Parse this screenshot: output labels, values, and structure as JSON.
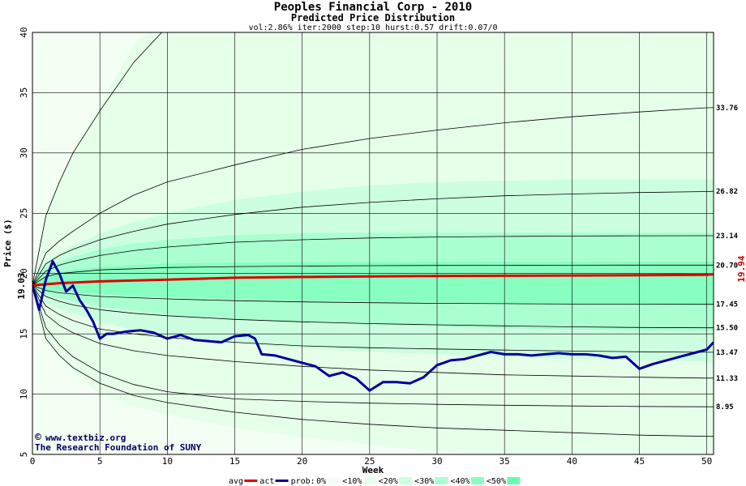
{
  "chart_data": {
    "type": "area",
    "title": "Peoples Financial Corp - 2010",
    "subtitle": "Predicted Price Distribution",
    "params": "vol:2.86% iter:2000 step:10 hurst:0.57 drift:0.07/0",
    "xlabel": "Week",
    "ylabel": "Price ($)",
    "xlim": [
      0,
      50.5
    ],
    "ylim": [
      5,
      40
    ],
    "x_ticks": [
      0,
      5,
      10,
      15,
      20,
      25,
      30,
      35,
      40,
      45,
      50
    ],
    "y_ticks": [
      5,
      10,
      15,
      20,
      25,
      30,
      35,
      40
    ],
    "start_price": 19.03,
    "start_price_label": "19.03",
    "end_price_label": "19.94",
    "right_labels": [
      "33.76",
      "26.82",
      "23.14",
      "20.70",
      "17.45",
      "15.50",
      "13.47",
      "11.33",
      "8.95"
    ],
    "bands": {
      "x": [
        0,
        0.5,
        1,
        2,
        3,
        5,
        7.5,
        10,
        15,
        20,
        25,
        30,
        35,
        40,
        45,
        50,
        50.5
      ],
      "upper": [
        [
          19.03,
          22.5,
          24.8,
          27.8,
          30.0,
          34.0,
          39.0,
          41.5,
          45,
          48,
          50,
          52,
          54,
          56,
          58,
          60,
          60
        ],
        [
          19.03,
          20.4,
          21.0,
          21.7,
          22.3,
          23.3,
          24.3,
          25.0,
          26.1,
          26.8,
          27.3,
          27.6,
          27.7,
          27.8,
          27.8,
          27.8,
          27.8
        ],
        [
          19.03,
          20.0,
          20.5,
          21.0,
          21.4,
          22.0,
          22.5,
          22.8,
          23.2,
          23.35,
          23.4,
          23.4,
          23.4,
          23.4,
          23.4,
          23.4,
          23.4
        ],
        [
          19.03,
          19.6,
          19.85,
          20.1,
          20.3,
          20.55,
          20.72,
          20.82,
          20.92,
          20.95,
          20.96,
          20.97,
          20.98,
          20.98,
          20.98,
          20.98,
          20.98
        ]
      ],
      "lower": [
        [
          19.03,
          15.8,
          14.4,
          13.0,
          11.9,
          10.0,
          9.0,
          8.3,
          7.2,
          6.4,
          5.8,
          5.3,
          4.9,
          4.6,
          4.3,
          4.1,
          4.1
        ],
        [
          19.03,
          18.1,
          17.6,
          17.1,
          16.7,
          16.0,
          15.3,
          14.8,
          14.2,
          13.8,
          13.5,
          13.3,
          13.1,
          12.9,
          12.8,
          12.7,
          12.7
        ],
        [
          19.03,
          18.5,
          18.25,
          17.95,
          17.7,
          17.25,
          16.9,
          16.6,
          16.2,
          15.95,
          15.75,
          15.6,
          15.45,
          15.35,
          15.27,
          15.2,
          15.2
        ],
        [
          19.03,
          18.8,
          18.68,
          18.55,
          18.45,
          18.3,
          18.17,
          18.05,
          17.88,
          17.78,
          17.7,
          17.62,
          17.55,
          17.48,
          17.43,
          17.38,
          17.38
        ]
      ]
    },
    "probability_lines": {
      "x": [
        0,
        1,
        2,
        3,
        5,
        7.5,
        10,
        15,
        20,
        25,
        30,
        35,
        40,
        45,
        50,
        50.5
      ],
      "lines": [
        [
          19.03,
          24.8,
          27.6,
          30.0,
          33.5,
          37.5,
          40.5,
          45,
          48,
          50,
          52,
          54,
          56,
          58,
          60,
          60
        ],
        [
          19.03,
          21.7,
          22.7,
          23.5,
          25.0,
          26.5,
          27.6,
          29.0,
          30.3,
          31.2,
          31.9,
          32.5,
          33.0,
          33.4,
          33.75,
          33.76
        ],
        [
          19.03,
          20.8,
          21.5,
          22.0,
          22.8,
          23.5,
          24.1,
          24.9,
          25.5,
          25.9,
          26.2,
          26.45,
          26.6,
          26.72,
          26.8,
          26.82
        ],
        [
          19.03,
          20.2,
          20.7,
          21.0,
          21.5,
          21.9,
          22.2,
          22.6,
          22.8,
          22.95,
          23.03,
          23.08,
          23.11,
          23.13,
          23.14,
          23.14
        ],
        [
          19.03,
          19.75,
          20.0,
          20.1,
          20.3,
          20.4,
          20.5,
          20.58,
          20.62,
          20.65,
          20.67,
          20.68,
          20.69,
          20.7,
          20.7,
          20.7
        ],
        [
          19.03,
          18.6,
          18.4,
          18.3,
          18.1,
          18.0,
          17.9,
          17.75,
          17.65,
          17.58,
          17.53,
          17.5,
          17.47,
          17.46,
          17.45,
          17.45
        ],
        [
          19.03,
          18.1,
          17.7,
          17.4,
          17.0,
          16.7,
          16.5,
          16.2,
          16.0,
          15.85,
          15.75,
          15.66,
          15.58,
          15.53,
          15.5,
          15.5
        ],
        [
          19.03,
          17.3,
          16.6,
          16.1,
          15.4,
          15.0,
          14.7,
          14.3,
          14.0,
          13.85,
          13.75,
          13.65,
          13.57,
          13.51,
          13.47,
          13.47
        ],
        [
          19.03,
          16.6,
          15.7,
          15.1,
          14.2,
          13.6,
          13.2,
          12.7,
          12.3,
          12.0,
          11.8,
          11.6,
          11.5,
          11.4,
          11.33,
          11.33
        ],
        [
          19.03,
          14.6,
          13.2,
          12.2,
          10.9,
          9.9,
          9.3,
          8.5,
          7.9,
          7.5,
          7.2,
          7.0,
          6.8,
          6.6,
          6.5,
          6.5
        ],
        [
          19.03,
          15.5,
          14.1,
          13.1,
          11.8,
          10.8,
          10.2,
          9.6,
          9.4,
          9.25,
          9.15,
          9.08,
          9.02,
          8.98,
          8.95,
          8.95
        ]
      ]
    },
    "series": [
      {
        "name": "avg",
        "color": "#dd0000",
        "x": [
          0,
          2,
          5,
          10,
          15,
          20,
          25,
          30,
          35,
          40,
          45,
          50,
          50.5
        ],
        "y": [
          19.03,
          19.2,
          19.35,
          19.5,
          19.65,
          19.72,
          19.76,
          19.8,
          19.82,
          19.84,
          19.86,
          19.9,
          19.94
        ]
      },
      {
        "name": "act",
        "color": "#000099",
        "x": [
          0,
          0.5,
          1,
          1.5,
          2,
          2.5,
          3,
          3.5,
          4,
          4.5,
          5,
          5.5,
          6,
          7,
          8,
          9,
          10,
          11,
          12,
          13,
          14,
          15,
          16,
          16.5,
          17,
          18,
          19,
          20,
          21,
          22,
          23,
          24,
          25,
          26,
          27,
          28,
          29,
          30,
          31,
          32,
          33,
          34,
          35,
          36,
          37,
          38,
          39,
          40,
          41,
          42,
          43,
          44,
          45,
          46,
          47,
          48,
          49,
          50,
          50.5
        ],
        "y": [
          19.03,
          17.0,
          19.5,
          21.0,
          20.0,
          18.5,
          19.0,
          17.8,
          17.0,
          16.0,
          14.6,
          15.0,
          15.0,
          15.2,
          15.3,
          15.1,
          14.6,
          14.9,
          14.5,
          14.4,
          14.3,
          14.8,
          14.9,
          14.6,
          13.3,
          13.2,
          12.9,
          12.6,
          12.3,
          11.5,
          11.8,
          11.3,
          10.3,
          11.0,
          11.0,
          10.9,
          11.4,
          12.4,
          12.8,
          12.9,
          13.2,
          13.5,
          13.3,
          13.3,
          13.2,
          13.3,
          13.4,
          13.3,
          13.3,
          13.2,
          13.0,
          13.1,
          12.1,
          12.5,
          12.8,
          13.1,
          13.4,
          13.7,
          14.3
        ]
      }
    ],
    "legend": {
      "placement": "bottom",
      "items": [
        "avg",
        "act",
        "prob:",
        "0%",
        "<10%",
        "<20%",
        "<30%",
        "<40%",
        "<50%"
      ],
      "colors": [
        "#dd0000",
        "#000099",
        "",
        "#f4fff4",
        "#e6ffe9",
        "#ccffe0",
        "#aaffd0",
        "#88ffc0",
        "#66ffaf"
      ]
    },
    "credit_lines": [
      "www.textbiz.org",
      "The Research Foundation of SUNY"
    ],
    "credit_symbol": "©"
  }
}
